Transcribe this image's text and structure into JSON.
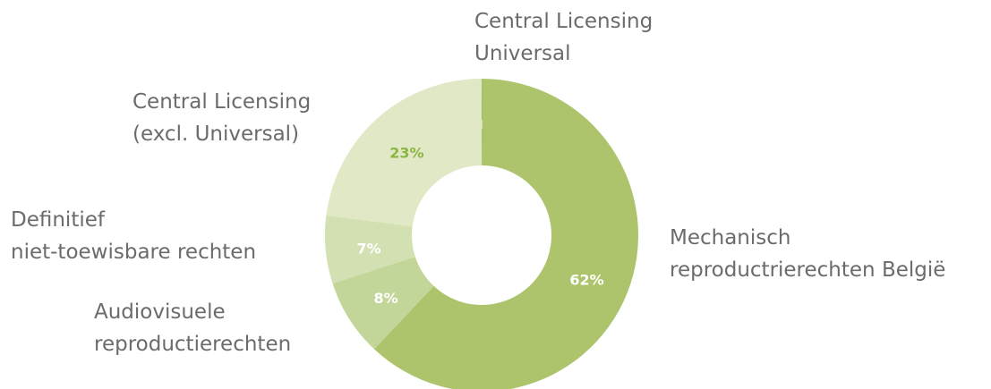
{
  "chart_data": {
    "type": "donut",
    "categories": [
      "Central Licensing\nUniversal",
      "Mechanisch\nreproductrierechten België",
      "Audiovisuele\nreproductierechten",
      "Definitief\nniet-toewisbare rechten",
      "Central Licensing\n(excl. Universal)"
    ],
    "values": [
      0.06,
      62,
      8,
      7,
      23
    ],
    "value_labels": [
      "0,06%",
      "62%",
      "8%",
      "7%",
      "23%"
    ],
    "colors": [
      "#8db544",
      "#adc46c",
      "#c3d69a",
      "#d3e1b2",
      "#e0e8c6"
    ],
    "label_colors": [
      "#ffffff",
      "#ffffff",
      "#ffffff",
      "#ffffff",
      "#8db544"
    ]
  }
}
